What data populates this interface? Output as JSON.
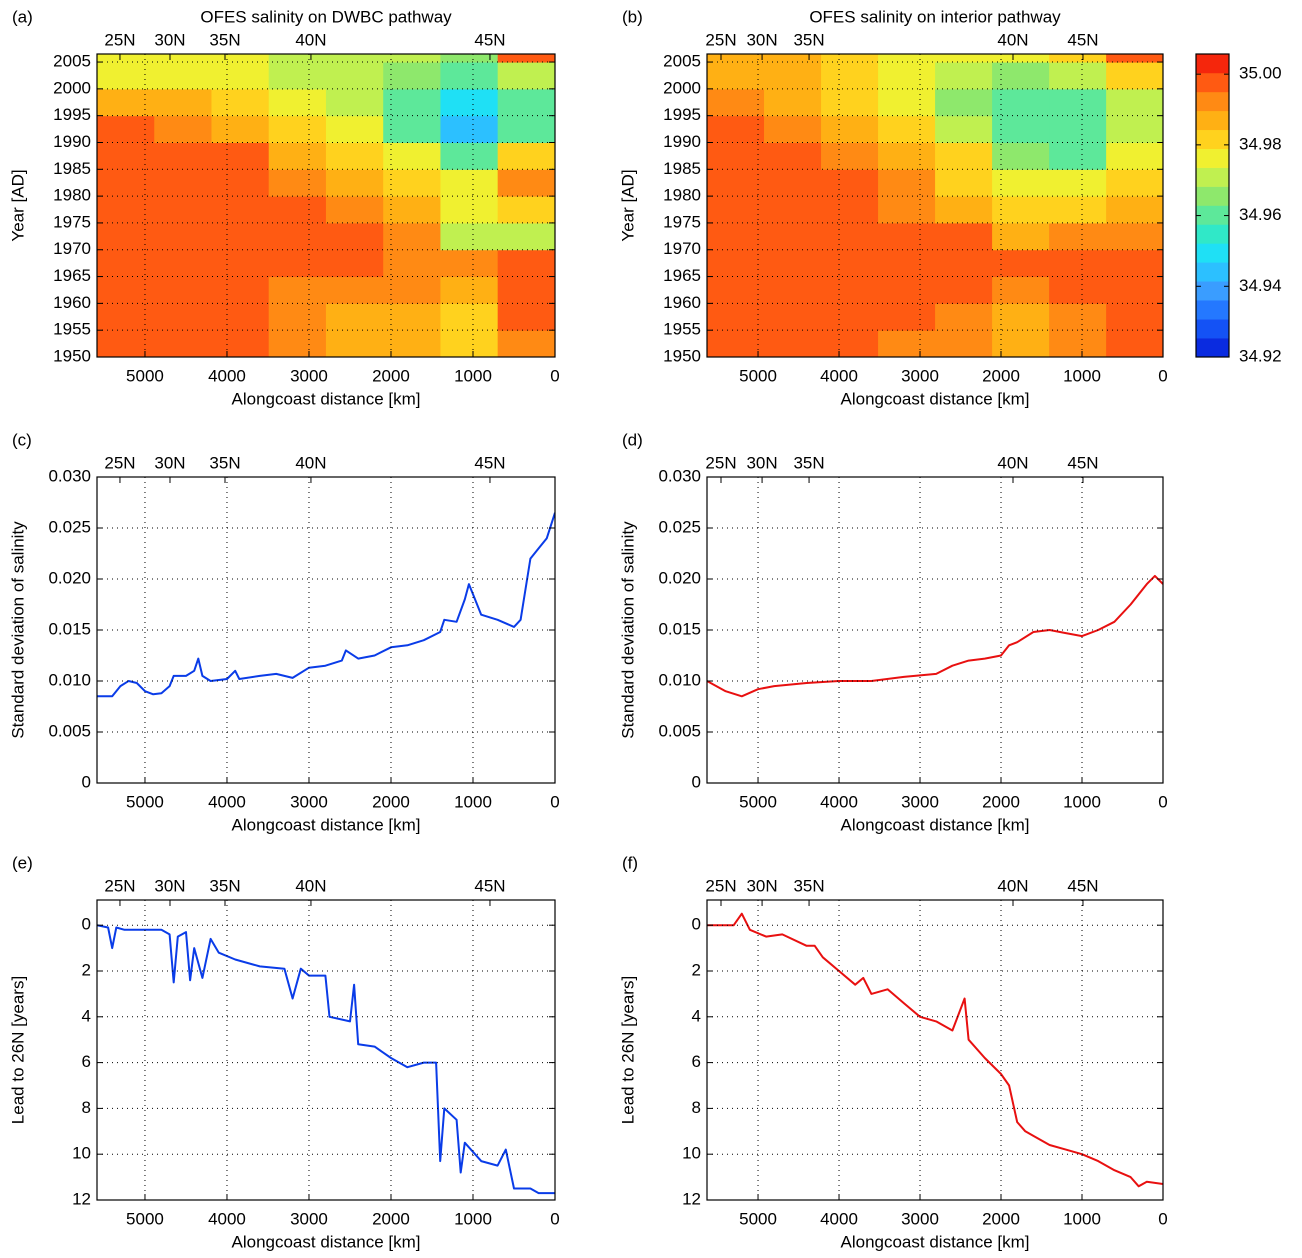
{
  "chart_data": [
    {
      "type": "heatmap",
      "label": "(a)",
      "title": "OFES salinity on DWBC pathway",
      "xlabel": "Alongcoast distance [km]",
      "ylabel": "Year [AD]",
      "xlim": [
        5585,
        0
      ],
      "xticks": [
        5000,
        4000,
        3000,
        2000,
        1000,
        0
      ],
      "x2ticks": [
        {
          "value": 5305,
          "label": "25N"
        },
        {
          "value": 4695,
          "label": "30N"
        },
        {
          "value": 4024,
          "label": "35N"
        },
        {
          "value": 2976,
          "label": "40N"
        },
        {
          "value": 793,
          "label": "45N"
        }
      ],
      "ylim": [
        1950,
        2006.5
      ],
      "yticks": [
        1950,
        1955,
        1960,
        1965,
        1970,
        1975,
        1980,
        1985,
        1990,
        1995,
        2000,
        2005
      ],
      "grid": true,
      "x": [
        5236,
        4538,
        3840,
        3142,
        2444,
        1746,
        1048,
        350
      ],
      "y": [
        1952.5,
        1957.5,
        1962.5,
        1967.5,
        1972.5,
        1977.5,
        1982.5,
        1987.5,
        1992.5,
        1997.5,
        2002.5,
        2007.5
      ],
      "values": [
        [
          35.0,
          35.0,
          34.995,
          34.99,
          34.985,
          34.985,
          34.98,
          34.99
        ],
        [
          35.0,
          35.0,
          34.995,
          34.99,
          34.985,
          34.985,
          34.98,
          34.995
        ],
        [
          35.0,
          35.0,
          34.995,
          34.99,
          34.99,
          34.99,
          34.985,
          35.0
        ],
        [
          35.0,
          35.0,
          35.0,
          35.0,
          34.995,
          34.99,
          34.99,
          35.0
        ],
        [
          35.0,
          35.0,
          35.0,
          35.0,
          35.0,
          34.99,
          34.97,
          34.97
        ],
        [
          35.0,
          35.0,
          35.0,
          34.995,
          34.99,
          34.985,
          34.975,
          34.98
        ],
        [
          35.0,
          35.0,
          35.0,
          34.99,
          34.985,
          34.98,
          34.975,
          34.99
        ],
        [
          35.0,
          35.0,
          34.995,
          34.985,
          34.98,
          34.975,
          34.96,
          34.98
        ],
        [
          35.0,
          34.99,
          34.985,
          34.98,
          34.975,
          34.96,
          34.945,
          34.96
        ],
        [
          34.985,
          34.985,
          34.98,
          34.975,
          34.97,
          34.96,
          34.95,
          34.96
        ],
        [
          34.975,
          34.975,
          34.975,
          34.97,
          34.97,
          34.965,
          34.96,
          34.97
        ],
        [
          34.975,
          34.975,
          34.975,
          34.97,
          34.97,
          34.97,
          34.965,
          35.0
        ]
      ],
      "clim": [
        34.92,
        35.0057
      ],
      "colormap": [
        "#0a2be0",
        "#1452f5",
        "#2478ff",
        "#3a9dff",
        "#2cc0ff",
        "#1fe0f5",
        "#30e8c8",
        "#5de89a",
        "#8ee86c",
        "#c0f050",
        "#f0f030",
        "#ffd21e",
        "#ffb014",
        "#ff8a14",
        "#ff5a12",
        "#f5260c"
      ]
    },
    {
      "type": "heatmap",
      "label": "(b)",
      "title": "OFES salinity on interior pathway",
      "xlabel": "Alongcoast distance [km]",
      "ylabel": "Year [AD]",
      "xlim": [
        5630,
        0
      ],
      "xticks": [
        5000,
        4000,
        3000,
        2000,
        1000,
        0
      ],
      "x2ticks": [
        {
          "value": 5457,
          "label": "25N"
        },
        {
          "value": 4950,
          "label": "30N"
        },
        {
          "value": 4370,
          "label": "35N"
        },
        {
          "value": 1852,
          "label": "40N"
        },
        {
          "value": 988,
          "label": "45N"
        }
      ],
      "ylim": [
        1950,
        2006.5
      ],
      "yticks": [
        1950,
        1955,
        1960,
        1965,
        1970,
        1975,
        1980,
        1985,
        1990,
        1995,
        2000,
        2005
      ],
      "grid": true,
      "x": [
        5278,
        4574,
        3870,
        3166,
        2462,
        1758,
        1054,
        350
      ],
      "y": [
        1952.5,
        1957.5,
        1962.5,
        1967.5,
        1972.5,
        1977.5,
        1982.5,
        1987.5,
        1992.5,
        1997.5,
        2002.5,
        2007.5
      ],
      "values": [
        [
          35.0,
          35.0,
          34.995,
          34.99,
          34.99,
          34.985,
          34.99,
          35.0
        ],
        [
          35.0,
          35.0,
          35.0,
          34.995,
          34.99,
          34.985,
          34.99,
          35.0
        ],
        [
          35.0,
          35.0,
          35.0,
          35.0,
          34.995,
          34.99,
          35.0,
          35.0
        ],
        [
          35.0,
          35.0,
          35.0,
          35.0,
          35.0,
          35.0,
          35.0,
          35.0
        ],
        [
          35.0,
          35.0,
          35.0,
          35.0,
          34.995,
          34.985,
          34.99,
          34.99
        ],
        [
          35.0,
          35.0,
          35.0,
          34.99,
          34.985,
          34.98,
          34.98,
          34.985
        ],
        [
          35.0,
          35.0,
          35.0,
          34.99,
          34.98,
          34.975,
          34.975,
          34.98
        ],
        [
          35.0,
          35.0,
          34.99,
          34.985,
          34.98,
          34.965,
          34.96,
          34.975
        ],
        [
          35.0,
          34.99,
          34.985,
          34.98,
          34.97,
          34.96,
          34.96,
          34.97
        ],
        [
          34.99,
          34.985,
          34.98,
          34.975,
          34.965,
          34.96,
          34.96,
          34.97
        ],
        [
          34.985,
          34.985,
          34.98,
          34.975,
          34.97,
          34.965,
          34.97,
          34.98
        ],
        [
          34.985,
          34.985,
          34.98,
          34.975,
          34.975,
          34.975,
          34.98,
          35.0
        ]
      ],
      "clim": [
        34.92,
        35.0057
      ],
      "colormap": [
        "#0a2be0",
        "#1452f5",
        "#2478ff",
        "#3a9dff",
        "#2cc0ff",
        "#1fe0f5",
        "#30e8c8",
        "#5de89a",
        "#8ee86c",
        "#c0f050",
        "#f0f030",
        "#ffd21e",
        "#ffb014",
        "#ff8a14",
        "#ff5a12",
        "#f5260c"
      ],
      "colorbar": true,
      "cticks": [
        {
          "value": 34.92,
          "label": "34.92"
        },
        {
          "value": 34.94,
          "label": "34.94"
        },
        {
          "value": 34.96,
          "label": "34.96"
        },
        {
          "value": 34.98,
          "label": "34.98"
        },
        {
          "value": 35.0,
          "label": "35.00"
        }
      ]
    },
    {
      "type": "line",
      "label": "(c)",
      "xlabel": "Alongcoast distance [km]",
      "ylabel": "Standard deviation of salinity",
      "xlim": [
        5585,
        0
      ],
      "xticks": [
        5000,
        4000,
        3000,
        2000,
        1000,
        0
      ],
      "x2ticks": [
        {
          "value": 5305,
          "label": "25N"
        },
        {
          "value": 4695,
          "label": "30N"
        },
        {
          "value": 4024,
          "label": "35N"
        },
        {
          "value": 2976,
          "label": "40N"
        },
        {
          "value": 793,
          "label": "45N"
        }
      ],
      "ylim": [
        0,
        0.03
      ],
      "yticks": [
        0,
        {
          "value": 0.005,
          "label": "0.005"
        },
        {
          "value": 0.01,
          "label": "0.010"
        },
        {
          "value": 0.015,
          "label": "0.015"
        },
        {
          "value": 0.02,
          "label": "0.020"
        },
        {
          "value": 0.025,
          "label": "0.025"
        },
        {
          "value": 0.03,
          "label": "0.030"
        }
      ],
      "grid": true,
      "x": [
        5585,
        5400,
        5300,
        5200,
        5100,
        5000,
        4900,
        4800,
        4700,
        4650,
        4500,
        4400,
        4350,
        4300,
        4200,
        4000,
        3900,
        3850,
        3600,
        3400,
        3200,
        3000,
        2800,
        2600,
        2550,
        2400,
        2200,
        2000,
        1800,
        1600,
        1400,
        1350,
        1200,
        1100,
        1050,
        1000,
        900,
        700,
        500,
        420,
        300,
        200,
        100,
        0
      ],
      "series": [
        {
          "color": "#0a3ce8",
          "values": [
            0.0085,
            0.0085,
            0.0095,
            0.01,
            0.0098,
            0.009,
            0.0087,
            0.0088,
            0.0095,
            0.0105,
            0.0105,
            0.011,
            0.0122,
            0.0105,
            0.01,
            0.0102,
            0.011,
            0.0102,
            0.0105,
            0.0107,
            0.0103,
            0.0113,
            0.0115,
            0.012,
            0.013,
            0.0122,
            0.0125,
            0.0133,
            0.0135,
            0.014,
            0.0148,
            0.016,
            0.0158,
            0.018,
            0.0195,
            0.0185,
            0.0165,
            0.016,
            0.0153,
            0.016,
            0.022,
            0.023,
            0.024,
            0.0265
          ]
        }
      ]
    },
    {
      "type": "line",
      "label": "(d)",
      "xlabel": "Alongcoast distance [km]",
      "ylabel": "Standard deviation of salinity",
      "xlim": [
        5630,
        0
      ],
      "xticks": [
        5000,
        4000,
        3000,
        2000,
        1000,
        0
      ],
      "x2ticks": [
        {
          "value": 5457,
          "label": "25N"
        },
        {
          "value": 4950,
          "label": "30N"
        },
        {
          "value": 4370,
          "label": "35N"
        },
        {
          "value": 1852,
          "label": "40N"
        },
        {
          "value": 988,
          "label": "45N"
        }
      ],
      "ylim": [
        0,
        0.03
      ],
      "yticks": [
        0,
        {
          "value": 0.005,
          "label": "0.005"
        },
        {
          "value": 0.01,
          "label": "0.010"
        },
        {
          "value": 0.015,
          "label": "0.015"
        },
        {
          "value": 0.02,
          "label": "0.020"
        },
        {
          "value": 0.025,
          "label": "0.025"
        },
        {
          "value": 0.03,
          "label": "0.030"
        }
      ],
      "grid": true,
      "x": [
        5630,
        5400,
        5200,
        5000,
        4800,
        4400,
        4000,
        3600,
        3200,
        2800,
        2600,
        2400,
        2200,
        2000,
        1900,
        1800,
        1600,
        1400,
        1200,
        1000,
        800,
        600,
        400,
        200,
        100,
        0
      ],
      "series": [
        {
          "color": "#e81010",
          "values": [
            0.01,
            0.009,
            0.0085,
            0.0092,
            0.0095,
            0.0098,
            0.01,
            0.01,
            0.0104,
            0.0107,
            0.0115,
            0.012,
            0.0122,
            0.0125,
            0.0135,
            0.0138,
            0.0148,
            0.015,
            0.0147,
            0.0144,
            0.015,
            0.0158,
            0.0175,
            0.0195,
            0.0203,
            0.0195
          ]
        }
      ]
    },
    {
      "type": "line",
      "label": "(e)",
      "xlabel": "Alongcoast distance [km]",
      "ylabel": "Lead to 26N [years]",
      "xlim": [
        5585,
        0
      ],
      "xticks": [
        5000,
        4000,
        3000,
        2000,
        1000,
        0
      ],
      "x2ticks": [
        {
          "value": 5305,
          "label": "25N"
        },
        {
          "value": 4695,
          "label": "30N"
        },
        {
          "value": 4024,
          "label": "35N"
        },
        {
          "value": 2976,
          "label": "40N"
        },
        {
          "value": 793,
          "label": "45N"
        }
      ],
      "ylim": [
        12,
        -1.1
      ],
      "yticks": [
        0,
        2,
        4,
        6,
        8,
        10,
        12
      ],
      "grid": true,
      "x": [
        5585,
        5450,
        5400,
        5350,
        5250,
        4800,
        4700,
        4650,
        4600,
        4500,
        4450,
        4400,
        4300,
        4200,
        4100,
        3900,
        3600,
        3300,
        3200,
        3100,
        3000,
        2800,
        2750,
        2500,
        2450,
        2400,
        2200,
        2000,
        1800,
        1600,
        1450,
        1400,
        1350,
        1200,
        1150,
        1100,
        900,
        700,
        600,
        500,
        300,
        200,
        0
      ],
      "series": [
        {
          "color": "#0a3ce8",
          "values": [
            0,
            0.1,
            1.0,
            0.1,
            0.2,
            0.2,
            0.4,
            2.5,
            0.5,
            0.3,
            2.4,
            1.0,
            2.3,
            0.6,
            1.2,
            1.5,
            1.8,
            1.9,
            3.2,
            1.9,
            2.2,
            2.2,
            4.0,
            4.2,
            2.6,
            5.2,
            5.3,
            5.8,
            6.2,
            6.0,
            6.0,
            10.3,
            8.0,
            8.5,
            10.8,
            9.5,
            10.3,
            10.5,
            9.8,
            11.5,
            11.5,
            11.7,
            11.7
          ]
        }
      ]
    },
    {
      "type": "line",
      "label": "(f)",
      "xlabel": "Alongcoast distance [km]",
      "ylabel": "Lead to 26N [years]",
      "xlim": [
        5630,
        0
      ],
      "xticks": [
        5000,
        4000,
        3000,
        2000,
        1000,
        0
      ],
      "x2ticks": [
        {
          "value": 5457,
          "label": "25N"
        },
        {
          "value": 4950,
          "label": "30N"
        },
        {
          "value": 4370,
          "label": "35N"
        },
        {
          "value": 1852,
          "label": "40N"
        },
        {
          "value": 988,
          "label": "45N"
        }
      ],
      "ylim": [
        12,
        -1.1
      ],
      "yticks": [
        0,
        2,
        4,
        6,
        8,
        10,
        12
      ],
      "grid": true,
      "x": [
        5630,
        5300,
        5200,
        5100,
        4900,
        4700,
        4400,
        4300,
        4200,
        4000,
        3800,
        3700,
        3600,
        3400,
        3200,
        3000,
        2800,
        2600,
        2450,
        2400,
        2200,
        2000,
        1900,
        1800,
        1700,
        1600,
        1400,
        1200,
        1000,
        800,
        600,
        400,
        300,
        200,
        0
      ],
      "series": [
        {
          "color": "#e81010",
          "values": [
            0,
            0,
            -0.5,
            0.2,
            0.5,
            0.4,
            0.9,
            0.9,
            1.4,
            2.0,
            2.6,
            2.3,
            3.0,
            2.8,
            3.4,
            4.0,
            4.2,
            4.6,
            3.2,
            5.0,
            5.8,
            6.5,
            7.0,
            8.6,
            9.0,
            9.2,
            9.6,
            9.8,
            10.0,
            10.3,
            10.7,
            11.0,
            11.4,
            11.2,
            11.3
          ]
        }
      ]
    }
  ]
}
